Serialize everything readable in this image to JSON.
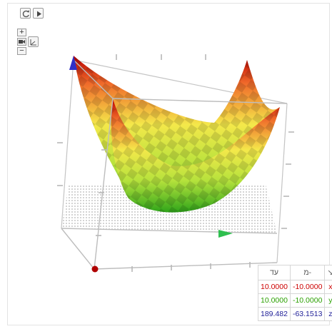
{
  "toolbar": {
    "reset_icon": "refresh-icon",
    "play_icon": "play-icon"
  },
  "zoom": {
    "zoom_in_label": "+",
    "zoom_out_label": "−",
    "camera_icon": "camera-icon",
    "axes_view_icon": "axes-view-icon"
  },
  "graph": {
    "x_axis_color": "#2fbf4f",
    "y_axis_color": "#3030c8",
    "z_axis_color": "#b00000",
    "surface_colors": [
      "#b70000",
      "#f06a2a",
      "#f4e84a",
      "#b6e23c",
      "#2fa51a"
    ]
  },
  "bounds_panel": {
    "col_max_label": "עד",
    "col_min_label": "מ-",
    "col_axis_icon": "↘",
    "rows": [
      {
        "max": "10.0000",
        "min": "-10.0000",
        "axis": "x"
      },
      {
        "max": "10.0000",
        "min": "-10.0000",
        "axis": "y"
      },
      {
        "max": "189.482",
        "min": "-63.1513",
        "axis": "z"
      }
    ]
  }
}
